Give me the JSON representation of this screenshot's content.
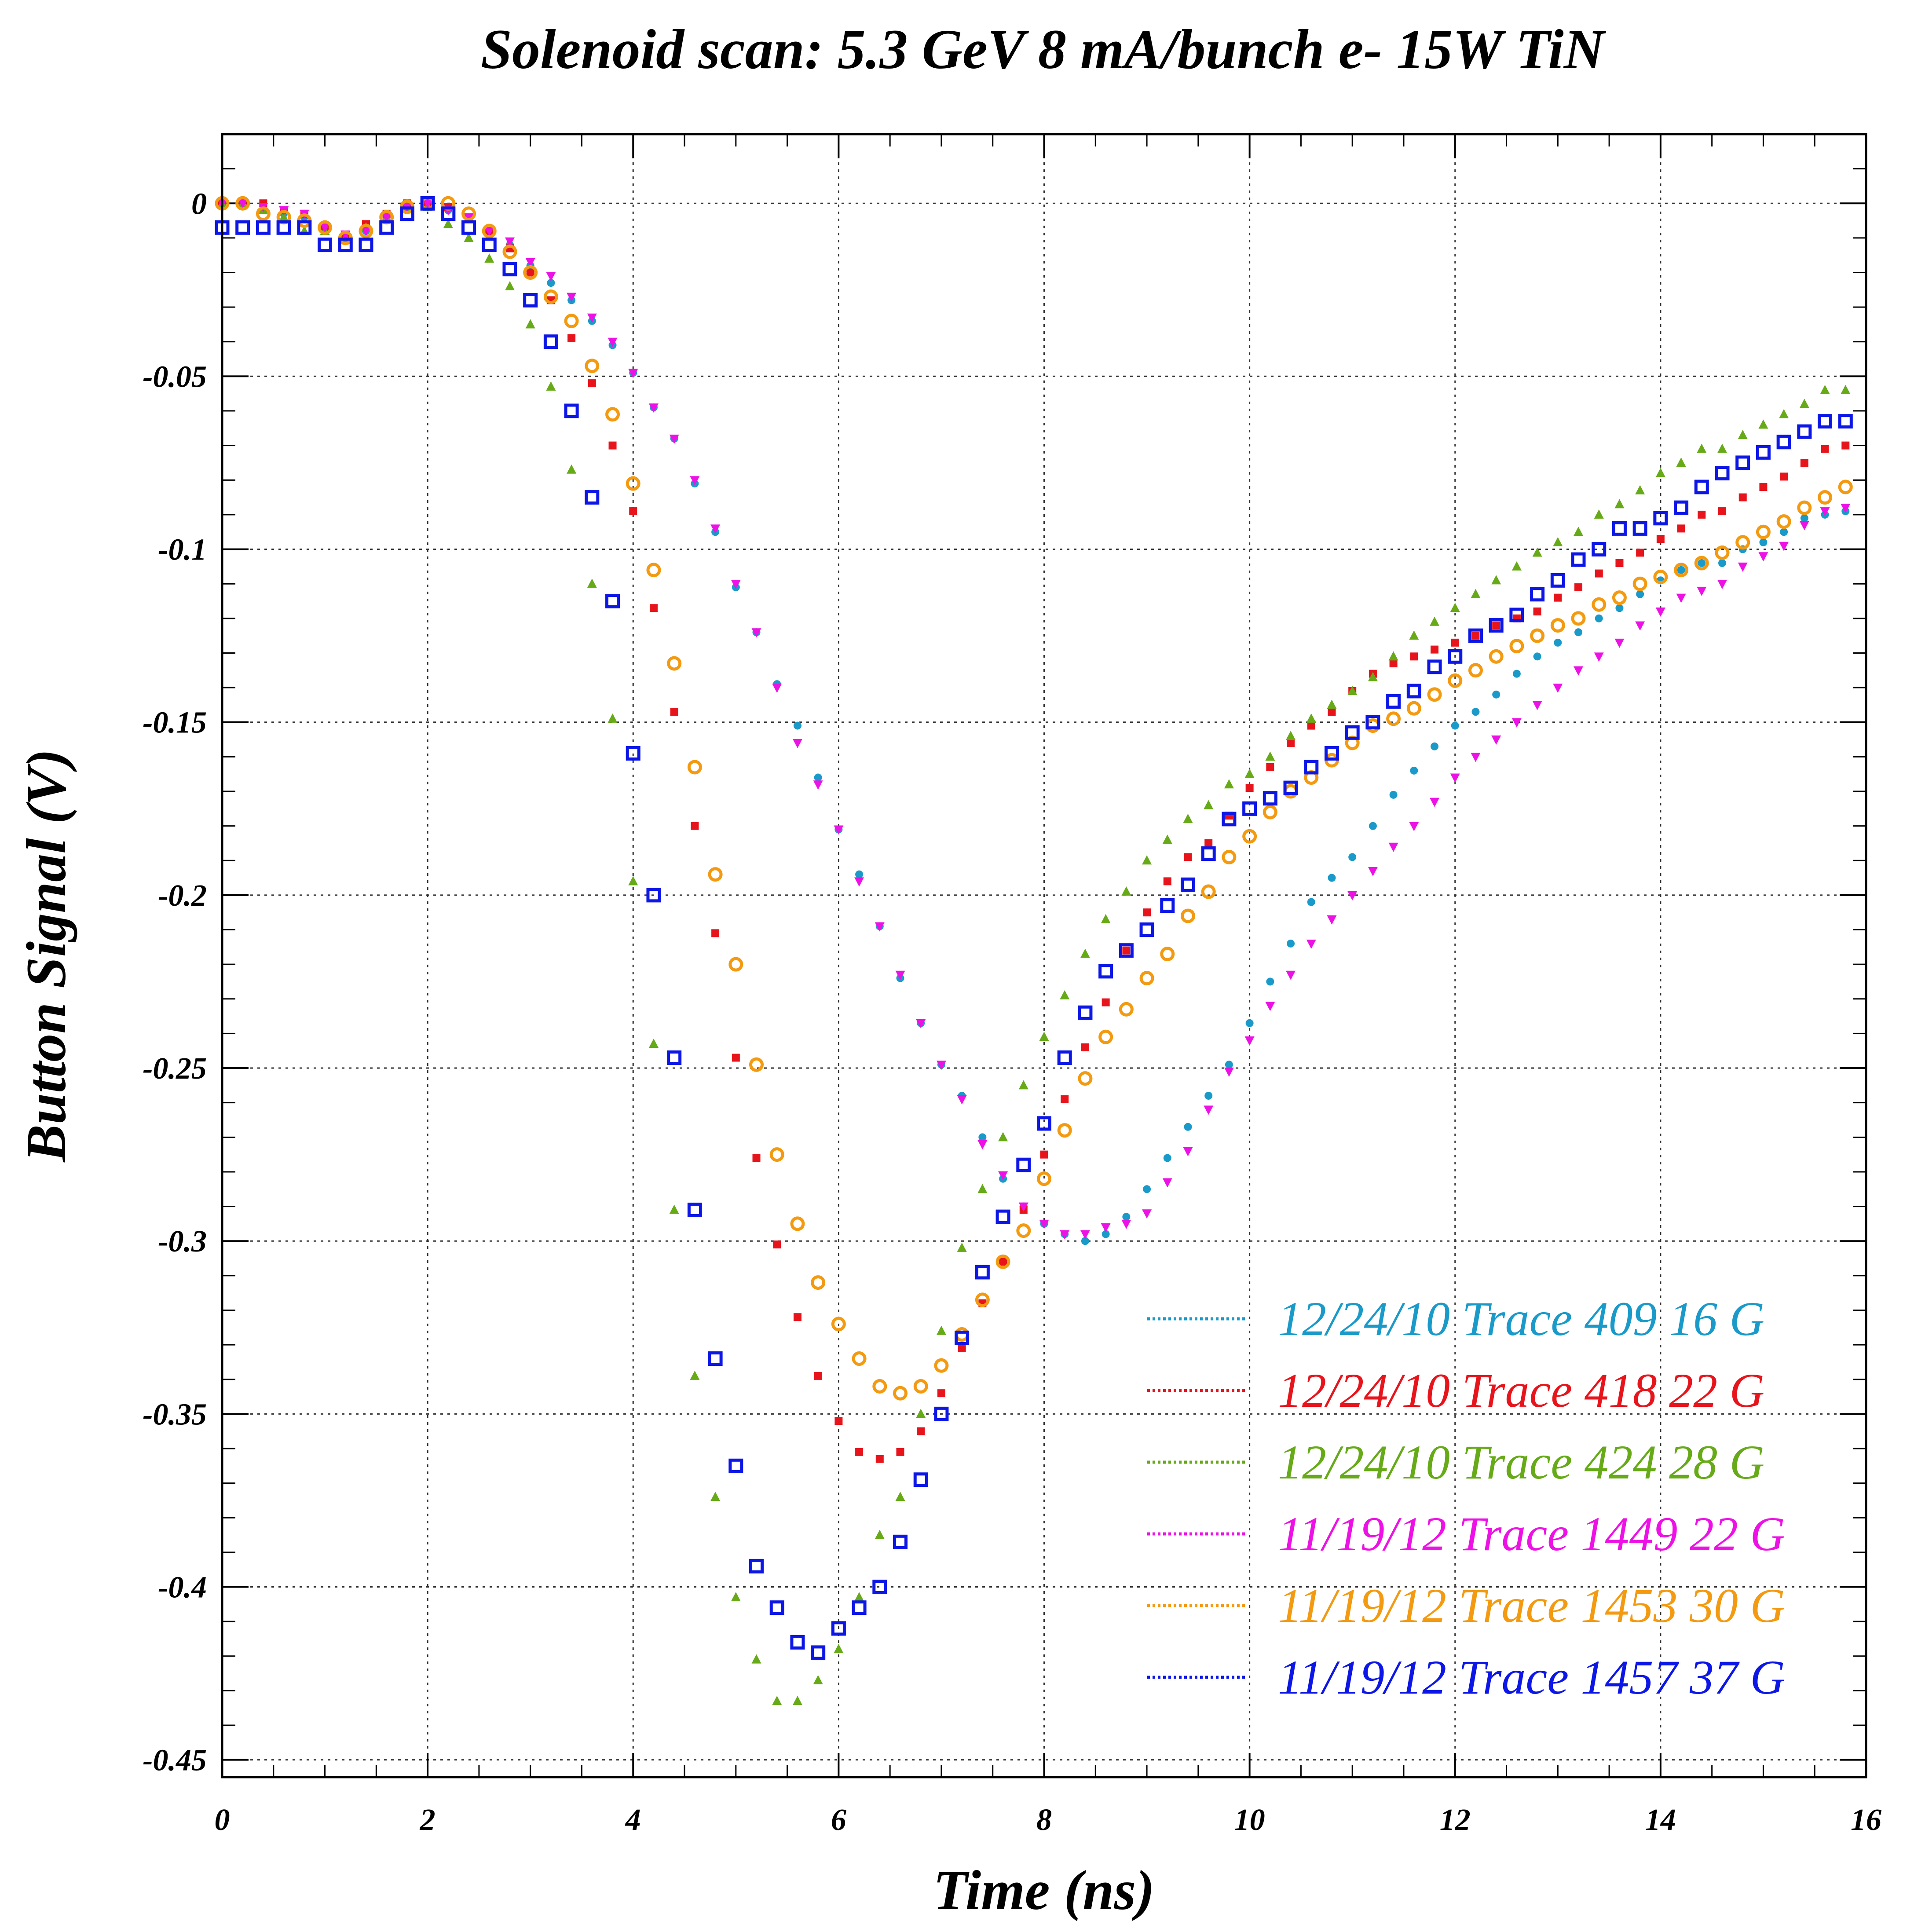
{
  "chart_data": {
    "type": "scatter",
    "title": "Solenoid scan: 5.3 GeV 8 mA/bunch e- 15W TiN",
    "xlabel": "Time (ns)",
    "ylabel": "Button Signal (V)",
    "xlim": [
      0,
      16
    ],
    "ylim": [
      -0.455,
      0.02
    ],
    "xticks": [
      0,
      2,
      4,
      6,
      8,
      10,
      12,
      14,
      16
    ],
    "xtick_labels": [
      "0",
      "2",
      "4",
      "6",
      "8",
      "10",
      "12",
      "14",
      "16"
    ],
    "yticks": [
      0,
      -0.05,
      -0.1,
      -0.15,
      -0.2,
      -0.25,
      -0.3,
      -0.35,
      -0.4,
      -0.45
    ],
    "ytick_labels": [
      "0",
      "-0.05",
      "-0.1",
      "-0.15",
      "-0.2",
      "-0.25",
      "-0.3",
      "-0.35",
      "-0.4",
      "-0.45"
    ],
    "grid": true,
    "legend_position": "bottom-right",
    "series": [
      {
        "name": "12/24/10 Trace 409  16 G",
        "color": "#1a9ac9",
        "marker": "circle",
        "x": [
          0,
          0.2,
          0.4,
          0.6,
          0.8,
          1.0,
          1.2,
          1.4,
          1.6,
          1.8,
          2.0,
          2.2,
          2.4,
          2.6,
          2.8,
          3.0,
          3.2,
          3.4,
          3.6,
          3.8,
          4.0,
          4.2,
          4.4,
          4.6,
          4.8,
          5.0,
          5.2,
          5.4,
          5.6,
          5.8,
          6.0,
          6.2,
          6.4,
          6.6,
          6.8,
          7.0,
          7.2,
          7.4,
          7.6,
          7.8,
          8.0,
          8.2,
          8.4,
          8.6,
          8.8,
          9.0,
          9.2,
          9.4,
          9.6,
          9.8,
          10.0,
          10.2,
          10.4,
          10.6,
          10.8,
          11.0,
          11.2,
          11.4,
          11.6,
          11.8,
          12.0,
          12.2,
          12.4,
          12.6,
          12.8,
          13.0,
          13.2,
          13.4,
          13.6,
          13.8,
          14.0,
          14.2,
          14.4,
          14.6,
          14.8,
          15.0,
          15.2,
          15.4,
          15.6,
          15.8
        ],
        "y": [
          0,
          0,
          -0.002,
          -0.003,
          -0.004,
          -0.007,
          -0.009,
          -0.008,
          -0.004,
          -0.001,
          0,
          -0.002,
          -0.004,
          -0.008,
          -0.012,
          -0.018,
          -0.023,
          -0.028,
          -0.034,
          -0.041,
          -0.049,
          -0.059,
          -0.068,
          -0.081,
          -0.095,
          -0.111,
          -0.124,
          -0.139,
          -0.151,
          -0.166,
          -0.181,
          -0.194,
          -0.209,
          -0.224,
          -0.237,
          -0.249,
          -0.258,
          -0.27,
          -0.282,
          -0.29,
          -0.295,
          -0.298,
          -0.3,
          -0.298,
          -0.293,
          -0.285,
          -0.276,
          -0.267,
          -0.258,
          -0.249,
          -0.237,
          -0.225,
          -0.214,
          -0.202,
          -0.195,
          -0.189,
          -0.18,
          -0.171,
          -0.164,
          -0.157,
          -0.151,
          -0.147,
          -0.142,
          -0.136,
          -0.131,
          -0.127,
          -0.124,
          -0.12,
          -0.117,
          -0.113,
          -0.109,
          -0.106,
          -0.104,
          -0.104,
          -0.1,
          -0.098,
          -0.095,
          -0.091,
          -0.09,
          -0.089
        ]
      },
      {
        "name": "12/24/10 Trace 418  22 G",
        "color": "#e8141c",
        "marker": "square",
        "x": [
          0,
          0.2,
          0.4,
          0.6,
          0.8,
          1.0,
          1.2,
          1.4,
          1.6,
          1.8,
          2.0,
          2.2,
          2.4,
          2.6,
          2.8,
          3.0,
          3.2,
          3.4,
          3.6,
          3.8,
          4.0,
          4.2,
          4.4,
          4.6,
          4.8,
          5.0,
          5.2,
          5.4,
          5.6,
          5.8,
          6.0,
          6.2,
          6.4,
          6.6,
          6.8,
          7.0,
          7.2,
          7.4,
          7.6,
          7.8,
          8.0,
          8.2,
          8.4,
          8.6,
          8.8,
          9.0,
          9.2,
          9.4,
          9.6,
          9.8,
          10.0,
          10.2,
          10.4,
          10.6,
          10.8,
          11.0,
          11.2,
          11.4,
          11.6,
          11.8,
          12.0,
          12.2,
          12.4,
          12.6,
          12.8,
          13.0,
          13.2,
          13.4,
          13.6,
          13.8,
          14.0,
          14.2,
          14.4,
          14.6,
          14.8,
          15.0,
          15.2,
          15.4,
          15.6,
          15.8
        ],
        "y": [
          0,
          0,
          0,
          -0.002,
          -0.003,
          -0.007,
          -0.01,
          -0.006,
          -0.003,
          0,
          0,
          -0.001,
          -0.004,
          -0.008,
          -0.013,
          -0.02,
          -0.028,
          -0.039,
          -0.052,
          -0.07,
          -0.089,
          -0.117,
          -0.147,
          -0.18,
          -0.211,
          -0.247,
          -0.276,
          -0.301,
          -0.322,
          -0.339,
          -0.352,
          -0.361,
          -0.363,
          -0.361,
          -0.355,
          -0.344,
          -0.331,
          -0.318,
          -0.306,
          -0.291,
          -0.275,
          -0.259,
          -0.244,
          -0.231,
          -0.216,
          -0.205,
          -0.196,
          -0.189,
          -0.185,
          -0.177,
          -0.169,
          -0.163,
          -0.156,
          -0.151,
          -0.147,
          -0.141,
          -0.136,
          -0.133,
          -0.131,
          -0.129,
          -0.127,
          -0.125,
          -0.122,
          -0.12,
          -0.118,
          -0.114,
          -0.111,
          -0.107,
          -0.104,
          -0.101,
          -0.097,
          -0.094,
          -0.09,
          -0.089,
          -0.085,
          -0.082,
          -0.079,
          -0.075,
          -0.071,
          -0.07
        ]
      },
      {
        "name": "12/24/10 Trace 424  28 G",
        "color": "#66aa17",
        "marker": "triangle",
        "x": [
          0,
          0.2,
          0.4,
          0.6,
          0.8,
          1.0,
          1.2,
          1.4,
          1.6,
          1.8,
          2.0,
          2.2,
          2.4,
          2.6,
          2.8,
          3.0,
          3.2,
          3.4,
          3.6,
          3.8,
          4.0,
          4.2,
          4.4,
          4.6,
          4.8,
          5.0,
          5.2,
          5.4,
          5.6,
          5.8,
          6.0,
          6.2,
          6.4,
          6.6,
          6.8,
          7.0,
          7.2,
          7.4,
          7.6,
          7.8,
          8.0,
          8.2,
          8.4,
          8.6,
          8.8,
          9.0,
          9.2,
          9.4,
          9.6,
          9.8,
          10.0,
          10.2,
          10.4,
          10.6,
          10.8,
          11.0,
          11.2,
          11.4,
          11.6,
          11.8,
          12.0,
          12.2,
          12.4,
          12.6,
          12.8,
          13.0,
          13.2,
          13.4,
          13.6,
          13.8,
          14.0,
          14.2,
          14.4,
          14.6,
          14.8,
          15.0,
          15.2,
          15.4,
          15.6,
          15.8
        ],
        "y": [
          0,
          0,
          -0.002,
          -0.004,
          -0.008,
          -0.008,
          -0.01,
          -0.007,
          -0.004,
          -0.001,
          -0.001,
          -0.006,
          -0.01,
          -0.016,
          -0.024,
          -0.035,
          -0.053,
          -0.077,
          -0.11,
          -0.149,
          -0.196,
          -0.243,
          -0.291,
          -0.339,
          -0.374,
          -0.403,
          -0.421,
          -0.433,
          -0.433,
          -0.427,
          -0.418,
          -0.403,
          -0.385,
          -0.374,
          -0.35,
          -0.326,
          -0.302,
          -0.285,
          -0.27,
          -0.255,
          -0.241,
          -0.229,
          -0.217,
          -0.207,
          -0.199,
          -0.19,
          -0.184,
          -0.178,
          -0.174,
          -0.168,
          -0.165,
          -0.16,
          -0.154,
          -0.149,
          -0.145,
          -0.141,
          -0.137,
          -0.131,
          -0.125,
          -0.121,
          -0.117,
          -0.113,
          -0.109,
          -0.105,
          -0.101,
          -0.098,
          -0.095,
          -0.09,
          -0.087,
          -0.083,
          -0.078,
          -0.075,
          -0.071,
          -0.071,
          -0.067,
          -0.064,
          -0.061,
          -0.058,
          -0.054,
          -0.054
        ]
      },
      {
        "name": "11/19/12 Trace 1449  22 G",
        "color": "#ee11e6",
        "marker": "triangle-down",
        "x": [
          0,
          0.2,
          0.4,
          0.6,
          0.8,
          1.0,
          1.2,
          1.4,
          1.6,
          1.8,
          2.0,
          2.2,
          2.4,
          2.6,
          2.8,
          3.0,
          3.2,
          3.4,
          3.6,
          3.8,
          4.0,
          4.2,
          4.4,
          4.6,
          4.8,
          5.0,
          5.2,
          5.4,
          5.6,
          5.8,
          6.0,
          6.2,
          6.4,
          6.6,
          6.8,
          7.0,
          7.2,
          7.4,
          7.6,
          7.8,
          8.0,
          8.2,
          8.4,
          8.6,
          8.8,
          9.0,
          9.2,
          9.4,
          9.6,
          9.8,
          10.0,
          10.2,
          10.4,
          10.6,
          10.8,
          11.0,
          11.2,
          11.4,
          11.6,
          11.8,
          12.0,
          12.2,
          12.4,
          12.6,
          12.8,
          13.0,
          13.2,
          13.4,
          13.6,
          13.8,
          14.0,
          14.2,
          14.4,
          14.6,
          14.8,
          15.0,
          15.2,
          15.4,
          15.6,
          15.8
        ],
        "y": [
          0,
          0,
          -0.001,
          -0.002,
          -0.003,
          -0.007,
          -0.009,
          -0.008,
          -0.004,
          -0.001,
          0,
          -0.002,
          -0.004,
          -0.008,
          -0.011,
          -0.017,
          -0.021,
          -0.027,
          -0.033,
          -0.04,
          -0.049,
          -0.059,
          -0.068,
          -0.08,
          -0.094,
          -0.11,
          -0.124,
          -0.14,
          -0.156,
          -0.168,
          -0.181,
          -0.196,
          -0.209,
          -0.223,
          -0.237,
          -0.249,
          -0.259,
          -0.272,
          -0.281,
          -0.29,
          -0.295,
          -0.298,
          -0.298,
          -0.296,
          -0.295,
          -0.292,
          -0.283,
          -0.274,
          -0.262,
          -0.251,
          -0.242,
          -0.232,
          -0.223,
          -0.214,
          -0.207,
          -0.2,
          -0.193,
          -0.186,
          -0.18,
          -0.173,
          -0.166,
          -0.16,
          -0.155,
          -0.15,
          -0.145,
          -0.14,
          -0.135,
          -0.131,
          -0.127,
          -0.122,
          -0.118,
          -0.114,
          -0.112,
          -0.11,
          -0.105,
          -0.102,
          -0.099,
          -0.093,
          -0.089,
          -0.088
        ]
      },
      {
        "name": "11/19/12 Trace 1453  30 G",
        "color": "#f39a10",
        "marker": "circle-open",
        "x": [
          0,
          0.2,
          0.4,
          0.6,
          0.8,
          1.0,
          1.2,
          1.4,
          1.6,
          1.8,
          2.0,
          2.2,
          2.4,
          2.6,
          2.8,
          3.0,
          3.2,
          3.4,
          3.6,
          3.8,
          4.0,
          4.2,
          4.4,
          4.6,
          4.8,
          5.0,
          5.2,
          5.4,
          5.6,
          5.8,
          6.0,
          6.2,
          6.4,
          6.6,
          6.8,
          7.0,
          7.2,
          7.4,
          7.6,
          7.8,
          8.0,
          8.2,
          8.4,
          8.6,
          8.8,
          9.0,
          9.2,
          9.4,
          9.6,
          9.8,
          10.0,
          10.2,
          10.4,
          10.6,
          10.8,
          11.0,
          11.2,
          11.4,
          11.6,
          11.8,
          12.0,
          12.2,
          12.4,
          12.6,
          12.8,
          13.0,
          13.2,
          13.4,
          13.6,
          13.8,
          14.0,
          14.2,
          14.4,
          14.6,
          14.8,
          15.0,
          15.2,
          15.4,
          15.6,
          15.8
        ],
        "y": [
          0,
          0,
          -0.003,
          -0.004,
          -0.005,
          -0.007,
          -0.01,
          -0.008,
          -0.004,
          -0.001,
          0,
          0,
          -0.003,
          -0.008,
          -0.014,
          -0.02,
          -0.027,
          -0.034,
          -0.047,
          -0.061,
          -0.081,
          -0.106,
          -0.133,
          -0.163,
          -0.194,
          -0.22,
          -0.249,
          -0.275,
          -0.295,
          -0.312,
          -0.324,
          -0.334,
          -0.342,
          -0.344,
          -0.342,
          -0.336,
          -0.327,
          -0.317,
          -0.306,
          -0.297,
          -0.282,
          -0.268,
          -0.253,
          -0.241,
          -0.233,
          -0.224,
          -0.217,
          -0.206,
          -0.199,
          -0.189,
          -0.183,
          -0.176,
          -0.17,
          -0.166,
          -0.161,
          -0.156,
          -0.151,
          -0.149,
          -0.146,
          -0.142,
          -0.138,
          -0.135,
          -0.131,
          -0.128,
          -0.125,
          -0.122,
          -0.12,
          -0.116,
          -0.114,
          -0.11,
          -0.108,
          -0.106,
          -0.104,
          -0.101,
          -0.098,
          -0.095,
          -0.092,
          -0.088,
          -0.085,
          -0.082
        ]
      },
      {
        "name": "11/19/12 Trace 1457  37 G",
        "color": "#0c16e6",
        "marker": "square-open",
        "x": [
          0,
          0.2,
          0.4,
          0.6,
          0.8,
          1.0,
          1.2,
          1.4,
          1.6,
          1.8,
          2.0,
          2.2,
          2.4,
          2.6,
          2.8,
          3.0,
          3.2,
          3.4,
          3.6,
          3.8,
          4.0,
          4.2,
          4.4,
          4.6,
          4.8,
          5.0,
          5.2,
          5.4,
          5.6,
          5.8,
          6.0,
          6.2,
          6.4,
          6.6,
          6.8,
          7.0,
          7.2,
          7.4,
          7.6,
          7.8,
          8.0,
          8.2,
          8.4,
          8.6,
          8.8,
          9.0,
          9.2,
          9.4,
          9.6,
          9.8,
          10.0,
          10.2,
          10.4,
          10.6,
          10.8,
          11.0,
          11.2,
          11.4,
          11.6,
          11.8,
          12.0,
          12.2,
          12.4,
          12.6,
          12.8,
          13.0,
          13.2,
          13.4,
          13.6,
          13.8,
          14.0,
          14.2,
          14.4,
          14.6,
          14.8,
          15.0,
          15.2,
          15.4,
          15.6,
          15.8
        ],
        "y": [
          -0.007,
          -0.007,
          -0.007,
          -0.007,
          -0.007,
          -0.012,
          -0.012,
          -0.012,
          -0.007,
          -0.003,
          0,
          -0.003,
          -0.007,
          -0.012,
          -0.019,
          -0.028,
          -0.04,
          -0.06,
          -0.085,
          -0.115,
          -0.159,
          -0.2,
          -0.247,
          -0.291,
          -0.334,
          -0.365,
          -0.394,
          -0.406,
          -0.416,
          -0.419,
          -0.412,
          -0.406,
          -0.4,
          -0.387,
          -0.369,
          -0.35,
          -0.328,
          -0.309,
          -0.293,
          -0.278,
          -0.266,
          -0.247,
          -0.234,
          -0.222,
          -0.216,
          -0.21,
          -0.203,
          -0.197,
          -0.188,
          -0.178,
          -0.175,
          -0.172,
          -0.169,
          -0.163,
          -0.159,
          -0.153,
          -0.15,
          -0.144,
          -0.141,
          -0.134,
          -0.131,
          -0.125,
          -0.122,
          -0.119,
          -0.113,
          -0.109,
          -0.103,
          -0.1,
          -0.094,
          -0.094,
          -0.091,
          -0.088,
          -0.082,
          -0.078,
          -0.075,
          -0.072,
          -0.069,
          -0.066,
          -0.063,
          -0.063
        ]
      }
    ]
  }
}
